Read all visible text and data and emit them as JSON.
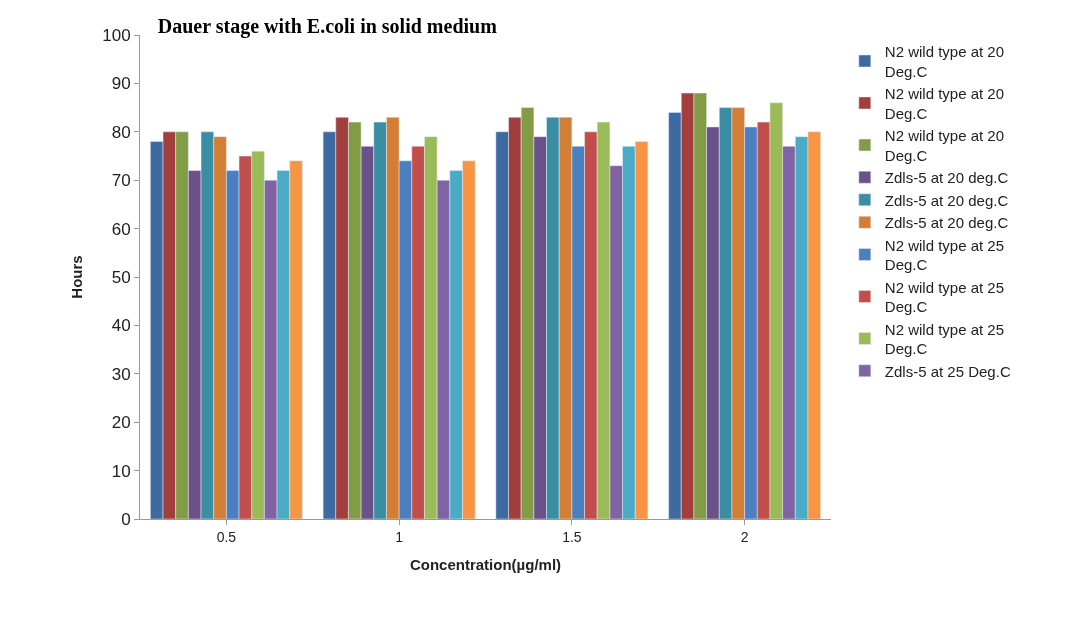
{
  "chart_data": {
    "type": "bar",
    "title": "Dauer stage with E.coli in solid medium",
    "xlabel": "Concentration(µg/ml)",
    "ylabel": "Hours",
    "categories": [
      "0.5",
      "1",
      "1.5",
      "2"
    ],
    "series": [
      {
        "name": "N2 wild type at 20 Deg.C",
        "color": "#3d6aa0",
        "values": [
          78,
          80,
          80,
          84
        ]
      },
      {
        "name": "N2 wild type at 20 Deg.C",
        "color": "#a23f3d",
        "values": [
          80,
          83,
          83,
          88
        ]
      },
      {
        "name": "N2 wild type at 20 Deg.C",
        "color": "#819c44",
        "values": [
          80,
          82,
          85,
          88
        ]
      },
      {
        "name": "Zdls-5 at 20 deg.C",
        "color": "#6a5189",
        "values": [
          72,
          77,
          79,
          81
        ]
      },
      {
        "name": "Zdls-5 at 20 deg.C",
        "color": "#3a8ea4",
        "values": [
          80,
          82,
          83,
          85
        ]
      },
      {
        "name": "Zdls-5 at 20 deg.C",
        "color": "#d37d35",
        "values": [
          79,
          83,
          83,
          85
        ]
      },
      {
        "name": "N2 wild type at 25 Deg.C",
        "color": "#4b7fc0",
        "values": [
          72,
          74,
          77,
          81
        ]
      },
      {
        "name": "N2 wild type at 25 Deg.C",
        "color": "#c24e4b",
        "values": [
          75,
          77,
          80,
          82
        ]
      },
      {
        "name": "N2 wild type at 25 Deg.C",
        "color": "#9bbb58",
        "values": [
          76,
          79,
          82,
          86
        ]
      },
      {
        "name": "Zdls-5 at 25 Deg.C",
        "color": "#7f63a2",
        "values": [
          70,
          70,
          73,
          77
        ]
      },
      {
        "color": "#4aabc6",
        "values": [
          72,
          72,
          77,
          79
        ]
      },
      {
        "color": "#f79545",
        "values": [
          74,
          74,
          78,
          80
        ]
      }
    ],
    "ylim": [
      0,
      100
    ],
    "yticks": [
      0,
      10,
      20,
      30,
      40,
      50,
      60,
      70,
      80,
      90,
      100
    ],
    "legend": "right"
  }
}
